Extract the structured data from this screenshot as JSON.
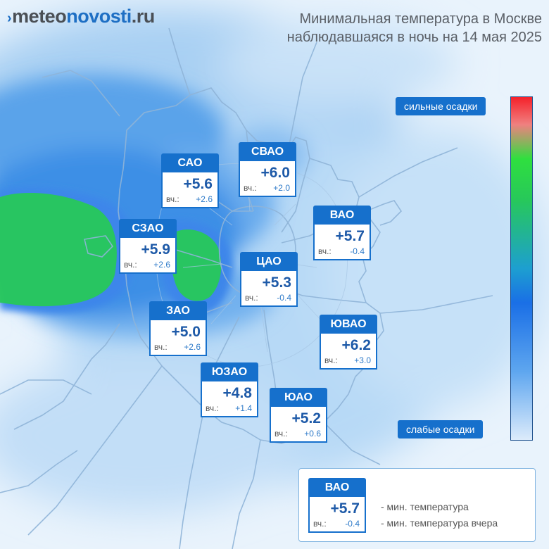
{
  "header": {
    "logo": {
      "prefix": "›",
      "part1": "meteo",
      "part2": "novosti",
      "part3": ".ru"
    },
    "title_line1": "Минимальная температура в Москве",
    "title_line2": "наблюдавшаяся в ночь на 14 мая 2025"
  },
  "districts": [
    {
      "name": "САО",
      "temp": "+5.6",
      "yest_label": "вч.:",
      "yest": "+2.6"
    },
    {
      "name": "СВАО",
      "temp": "+6.0",
      "yest_label": "вч.:",
      "yest": "+2.0"
    },
    {
      "name": "СЗАО",
      "temp": "+5.9",
      "yest_label": "вч.:",
      "yest": "+2.6"
    },
    {
      "name": "ВАО",
      "temp": "+5.7",
      "yest_label": "вч.:",
      "yest": "-0.4"
    },
    {
      "name": "ЦАО",
      "temp": "+5.3",
      "yest_label": "вч.:",
      "yest": "-0.4"
    },
    {
      "name": "ЗАО",
      "temp": "+5.0",
      "yest_label": "вч.:",
      "yest": "+2.6"
    },
    {
      "name": "ЮВАО",
      "temp": "+6.2",
      "yest_label": "вч.:",
      "yest": "+3.0"
    },
    {
      "name": "ЮЗАО",
      "temp": "+4.8",
      "yest_label": "вч.:",
      "yest": "+1.4"
    },
    {
      "name": "ЮАО",
      "temp": "+5.2",
      "yest_label": "вч.:",
      "yest": "+0.6"
    }
  ],
  "scale": {
    "top_label": "сильные осадки",
    "bottom_label": "слабые осадки",
    "colors": {
      "high": "#f5212a",
      "mid": "#27c85a",
      "low": "#dcebfb"
    }
  },
  "legend": {
    "sample": {
      "name": "ВАО",
      "temp": "+5.7",
      "yest_label": "вч.:",
      "yest": "-0.4"
    },
    "line1": "- мин. температура",
    "line2": "- мин. температура вчера"
  }
}
